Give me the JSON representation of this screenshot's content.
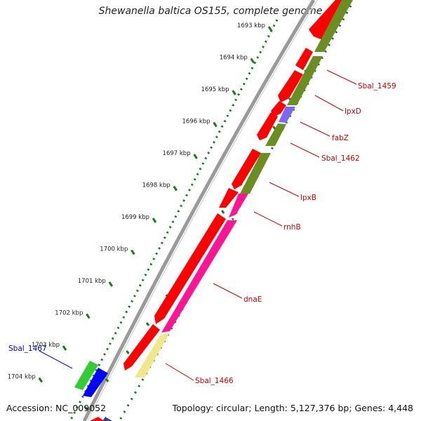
{
  "title": "Shewanella baltica OS155, complete genome",
  "footer": {
    "accession": "Accession: NC_009052",
    "summary": "Topology: circular; Length: 5,127,376 bp; Genes: 4,448"
  },
  "colors": {
    "forward_strand": "#ff0000",
    "reverse_olive": "#6b8e23",
    "reverse_purple": "#7b68ee",
    "reverse_pink": "#ff1493",
    "reverse_yellow": "#f0e68c",
    "green_gene": "#32cd32",
    "blue_gene": "#0000ff",
    "ruler_dots": "#1e7a1e",
    "label_red": "#cc0000",
    "label_blue": "#0000cc"
  },
  "ruler": {
    "ticks": [
      {
        "label": "1693 kbp"
      },
      {
        "label": "1694 kbp"
      },
      {
        "label": "1695 kbp"
      },
      {
        "label": "1696 kbp"
      },
      {
        "label": "1697 kbp"
      },
      {
        "label": "1698 kbp"
      },
      {
        "label": "1699 kbp"
      },
      {
        "label": "1700 kbp"
      },
      {
        "label": "1701 kbp"
      },
      {
        "label": "1702 kbp"
      },
      {
        "label": "1703 kbp"
      },
      {
        "label": "1704 kbp"
      }
    ]
  },
  "gene_labels": [
    {
      "text": "Sbal_1459",
      "color": "red"
    },
    {
      "text": "lpxD",
      "color": "red"
    },
    {
      "text": "fabZ",
      "color": "red"
    },
    {
      "text": "Sbal_1462",
      "color": "red"
    },
    {
      "text": "lpxB",
      "color": "red"
    },
    {
      "text": "rnhB",
      "color": "red"
    },
    {
      "text": "dnaE",
      "color": "red"
    },
    {
      "text": "Sbal_1466",
      "color": "red"
    },
    {
      "text": "Sbal_1467",
      "color": "blue"
    }
  ]
}
